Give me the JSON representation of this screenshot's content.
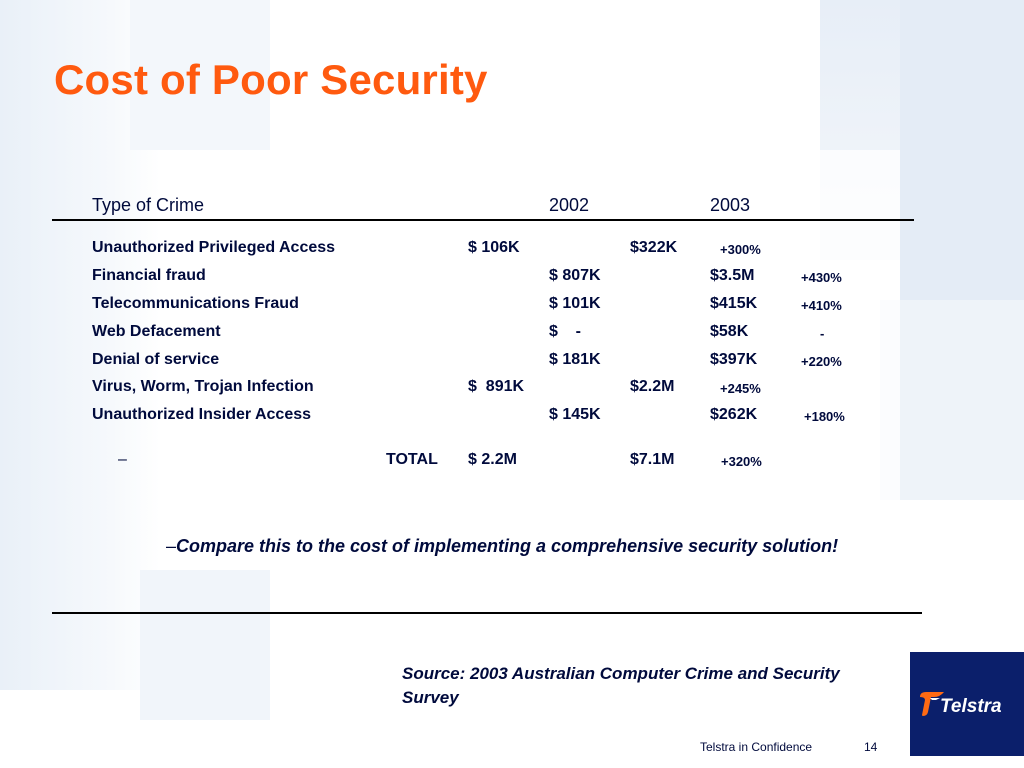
{
  "slide": {
    "title": "Cost of Poor Security",
    "table": {
      "headers": [
        "Type of Crime",
        "2002",
        "2003"
      ],
      "rows": [
        {
          "crime": "Unauthorized Privileged Access",
          "v2002": "$ 106K",
          "v2003": "$322K",
          "change": "+300%"
        },
        {
          "crime": "Financial fraud",
          "v2002": "$ 807K",
          "v2003": "$3.5M",
          "change": "+430%"
        },
        {
          "crime": "Telecommunications Fraud",
          "v2002": "$ 101K",
          "v2003": "$415K",
          "change": "+410%"
        },
        {
          "crime": "Web Defacement",
          "v2002": "$    -",
          "v2003": "$58K",
          "change": "-"
        },
        {
          "crime": "Denial of service",
          "v2002": "$ 181K",
          "v2003": "$397K",
          "change": "+220%"
        },
        {
          "crime": "Virus, Worm, Trojan Infection",
          "v2002": "$  891K",
          "v2003": "$2.2M",
          "change": "+245%"
        },
        {
          "crime": "Unauthorized Insider Access",
          "v2002": "$ 145K",
          "v2003": "$262K",
          "change": "+180%"
        }
      ],
      "total": {
        "dash": "–",
        "label": "TOTAL",
        "v2002": "$ 2.2M",
        "v2003": "$7.1M",
        "change": "+320%"
      }
    },
    "compare_dash": "–",
    "compare_text": "Compare this to the cost of implementing a comprehensive security solution!",
    "source_text": "Source: 2003 Australian Computer Crime and Security Survey",
    "logo_text": "Telstra",
    "footer": {
      "confidential": "Telstra in Confidence",
      "page_number": "14"
    },
    "colors": {
      "title": "#ff5a0f",
      "text": "#000a3c",
      "logo_bg": "#0b1f6b",
      "logo_accent": "#ff6a13"
    }
  }
}
